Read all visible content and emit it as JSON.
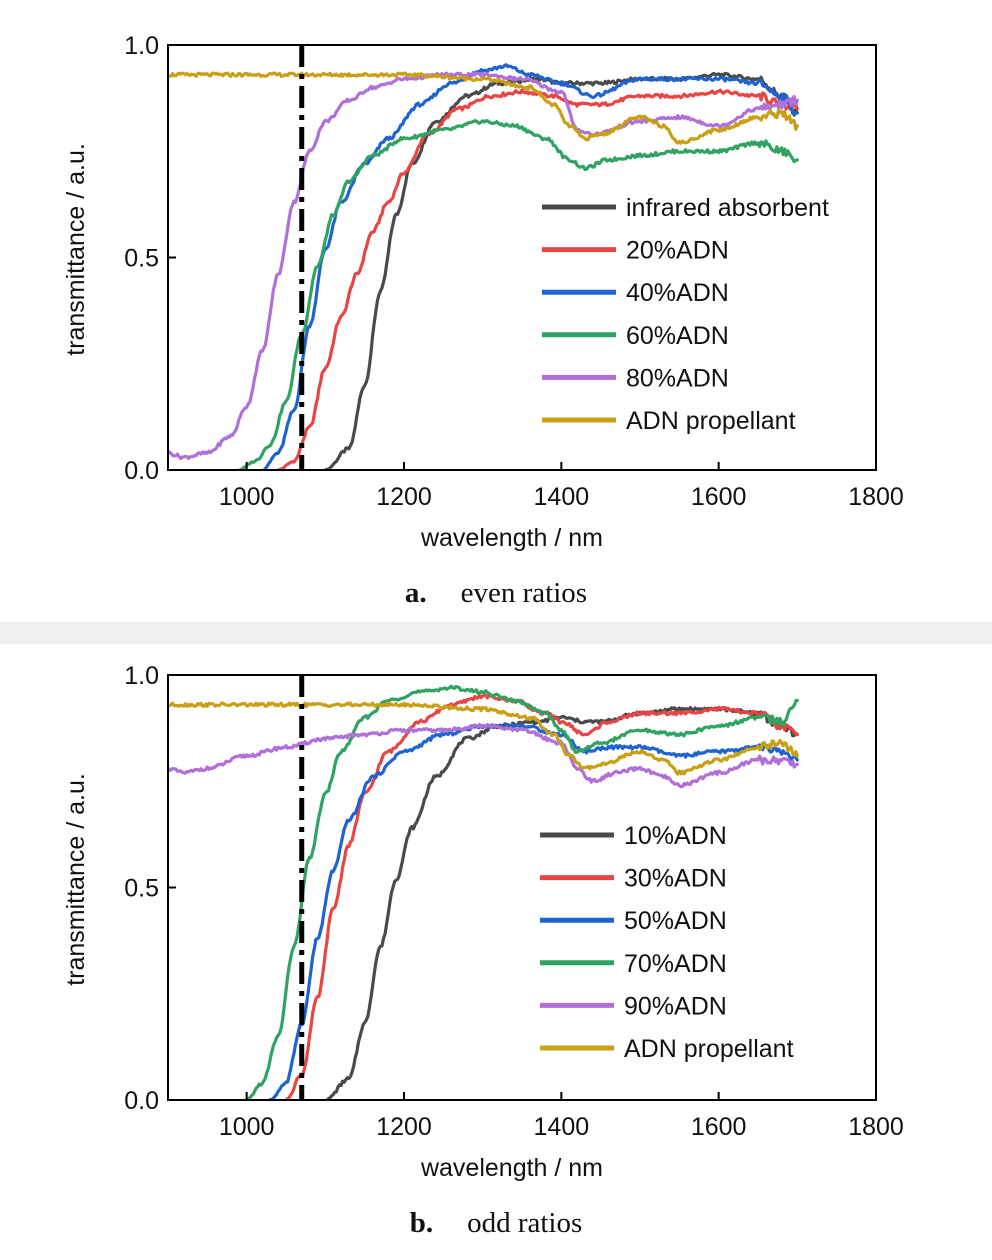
{
  "chart_data": [
    {
      "type": "line",
      "caption_letter": "a.",
      "caption_text": "even ratios",
      "xlabel": "wavelength / nm",
      "ylabel": "transmittance / a.u.",
      "xlim": [
        900,
        1800
      ],
      "ylim": [
        0.0,
        1.0
      ],
      "xticks": [
        "1000",
        "1200",
        "1400",
        "1600",
        "1800"
      ],
      "yticks": [
        "0.0",
        "0.5",
        "1.0"
      ],
      "grid": false,
      "legend_placement": "center-right",
      "reference_line": {
        "x": 1070,
        "style": "dash-dot"
      },
      "series": [
        {
          "name": "infrared absorbent",
          "color": "#4a4a4a",
          "x": [
            1100,
            1130,
            1150,
            1170,
            1190,
            1210,
            1240,
            1280,
            1320,
            1370,
            1400,
            1450,
            1500,
            1550,
            1600,
            1650,
            1680,
            1700
          ],
          "y": [
            0.0,
            0.05,
            0.2,
            0.42,
            0.6,
            0.72,
            0.82,
            0.88,
            0.91,
            0.92,
            0.91,
            0.91,
            0.92,
            0.92,
            0.93,
            0.92,
            0.88,
            0.84
          ]
        },
        {
          "name": "20%ADN",
          "color": "#e84545",
          "x": [
            1040,
            1060,
            1080,
            1100,
            1120,
            1140,
            1160,
            1180,
            1200,
            1230,
            1270,
            1310,
            1350,
            1390,
            1420,
            1450,
            1500,
            1550,
            1600,
            1650,
            1680,
            1700
          ],
          "y": [
            0.0,
            0.02,
            0.1,
            0.24,
            0.36,
            0.46,
            0.56,
            0.63,
            0.7,
            0.79,
            0.85,
            0.88,
            0.89,
            0.88,
            0.86,
            0.86,
            0.88,
            0.88,
            0.89,
            0.88,
            0.86,
            0.85
          ]
        },
        {
          "name": "40%ADN",
          "color": "#1f63d1",
          "x": [
            1020,
            1040,
            1060,
            1080,
            1100,
            1120,
            1150,
            1180,
            1220,
            1260,
            1300,
            1330,
            1360,
            1400,
            1440,
            1500,
            1550,
            1600,
            1650,
            1680,
            1700
          ],
          "y": [
            0.0,
            0.04,
            0.14,
            0.34,
            0.52,
            0.63,
            0.72,
            0.78,
            0.86,
            0.91,
            0.94,
            0.95,
            0.93,
            0.91,
            0.88,
            0.92,
            0.92,
            0.92,
            0.91,
            0.88,
            0.84
          ]
        },
        {
          "name": "60%ADN",
          "color": "#2fa362",
          "x": [
            990,
            1010,
            1030,
            1050,
            1070,
            1090,
            1110,
            1130,
            1160,
            1200,
            1250,
            1300,
            1340,
            1380,
            1410,
            1430,
            1460,
            1500,
            1550,
            1600,
            1650,
            1680,
            1700
          ],
          "y": [
            0.0,
            0.02,
            0.06,
            0.16,
            0.32,
            0.48,
            0.6,
            0.68,
            0.74,
            0.78,
            0.8,
            0.82,
            0.81,
            0.78,
            0.73,
            0.71,
            0.73,
            0.74,
            0.75,
            0.75,
            0.77,
            0.75,
            0.73
          ]
        },
        {
          "name": "80%ADN",
          "color": "#b070d8",
          "x": [
            900,
            920,
            950,
            980,
            1000,
            1020,
            1040,
            1060,
            1080,
            1100,
            1130,
            1160,
            1200,
            1250,
            1300,
            1350,
            1400,
            1420,
            1440,
            1500,
            1550,
            1600,
            1650,
            1680,
            1700
          ],
          "y": [
            0.04,
            0.03,
            0.04,
            0.08,
            0.15,
            0.28,
            0.46,
            0.63,
            0.75,
            0.82,
            0.87,
            0.9,
            0.92,
            0.93,
            0.93,
            0.92,
            0.89,
            0.8,
            0.79,
            0.82,
            0.83,
            0.81,
            0.85,
            0.86,
            0.87
          ]
        },
        {
          "name": "ADN propellant",
          "color": "#c9a015",
          "x": [
            900,
            1000,
            1100,
            1200,
            1300,
            1360,
            1390,
            1410,
            1430,
            1450,
            1500,
            1530,
            1550,
            1600,
            1650,
            1680,
            1700
          ],
          "y": [
            0.93,
            0.93,
            0.93,
            0.93,
            0.92,
            0.9,
            0.86,
            0.81,
            0.78,
            0.79,
            0.83,
            0.81,
            0.77,
            0.8,
            0.83,
            0.84,
            0.81
          ]
        }
      ]
    },
    {
      "type": "line",
      "caption_letter": "b.",
      "caption_text": "odd ratios",
      "xlabel": "wavelength / nm",
      "ylabel": "transmittance / a.u.",
      "xlim": [
        900,
        1800
      ],
      "ylim": [
        0.0,
        1.0
      ],
      "xticks": [
        "1000",
        "1200",
        "1400",
        "1600",
        "1800"
      ],
      "yticks": [
        "0.0",
        "0.5",
        "1.0"
      ],
      "grid": false,
      "legend_placement": "center-right",
      "reference_line": {
        "x": 1070,
        "style": "dash-dot"
      },
      "series": [
        {
          "name": "10%ADN",
          "color": "#4a4a4a",
          "x": [
            1100,
            1130,
            1150,
            1170,
            1190,
            1210,
            1240,
            1280,
            1320,
            1370,
            1400,
            1430,
            1450,
            1500,
            1550,
            1600,
            1650,
            1680,
            1700
          ],
          "y": [
            0.0,
            0.05,
            0.18,
            0.36,
            0.52,
            0.64,
            0.76,
            0.85,
            0.88,
            0.89,
            0.9,
            0.89,
            0.89,
            0.91,
            0.92,
            0.92,
            0.91,
            0.88,
            0.86
          ]
        },
        {
          "name": "30%ADN",
          "color": "#e84545",
          "x": [
            1050,
            1070,
            1090,
            1110,
            1130,
            1150,
            1180,
            1220,
            1260,
            1300,
            1340,
            1380,
            1400,
            1430,
            1460,
            1500,
            1550,
            1600,
            1650,
            1680,
            1700
          ],
          "y": [
            0.0,
            0.06,
            0.24,
            0.45,
            0.6,
            0.72,
            0.82,
            0.89,
            0.93,
            0.95,
            0.94,
            0.91,
            0.89,
            0.86,
            0.89,
            0.91,
            0.91,
            0.92,
            0.91,
            0.88,
            0.86
          ]
        },
        {
          "name": "50%ADN",
          "color": "#1f63d1",
          "x": [
            1030,
            1050,
            1070,
            1090,
            1110,
            1130,
            1160,
            1200,
            1250,
            1300,
            1350,
            1400,
            1430,
            1460,
            1500,
            1550,
            1600,
            1650,
            1680,
            1700
          ],
          "y": [
            0.0,
            0.04,
            0.18,
            0.38,
            0.54,
            0.66,
            0.76,
            0.82,
            0.86,
            0.88,
            0.88,
            0.86,
            0.82,
            0.83,
            0.83,
            0.81,
            0.82,
            0.83,
            0.82,
            0.8
          ]
        },
        {
          "name": "70%ADN",
          "color": "#2fa362",
          "x": [
            1000,
            1020,
            1040,
            1060,
            1080,
            1100,
            1120,
            1150,
            1180,
            1220,
            1260,
            1300,
            1340,
            1380,
            1400,
            1420,
            1450,
            1500,
            1550,
            1600,
            1650,
            1680,
            1695,
            1700
          ],
          "y": [
            0.0,
            0.04,
            0.15,
            0.36,
            0.57,
            0.72,
            0.82,
            0.9,
            0.94,
            0.96,
            0.97,
            0.96,
            0.94,
            0.91,
            0.87,
            0.82,
            0.84,
            0.87,
            0.86,
            0.88,
            0.9,
            0.89,
            0.93,
            0.94
          ]
        },
        {
          "name": "90%ADN",
          "color": "#b070d8",
          "x": [
            900,
            920,
            950,
            1000,
            1050,
            1100,
            1150,
            1200,
            1250,
            1300,
            1350,
            1400,
            1420,
            1440,
            1470,
            1500,
            1530,
            1550,
            1600,
            1650,
            1680,
            1700
          ],
          "y": [
            0.78,
            0.77,
            0.78,
            0.81,
            0.83,
            0.85,
            0.86,
            0.87,
            0.87,
            0.88,
            0.87,
            0.84,
            0.78,
            0.75,
            0.77,
            0.78,
            0.76,
            0.74,
            0.77,
            0.8,
            0.8,
            0.79
          ]
        },
        {
          "name": "ADN propellant",
          "color": "#c9a015",
          "x": [
            900,
            1000,
            1100,
            1200,
            1300,
            1360,
            1390,
            1410,
            1430,
            1450,
            1500,
            1530,
            1550,
            1600,
            1650,
            1680,
            1700
          ],
          "y": [
            0.93,
            0.93,
            0.93,
            0.93,
            0.92,
            0.9,
            0.86,
            0.81,
            0.78,
            0.79,
            0.82,
            0.8,
            0.77,
            0.8,
            0.83,
            0.84,
            0.81
          ]
        }
      ]
    }
  ]
}
